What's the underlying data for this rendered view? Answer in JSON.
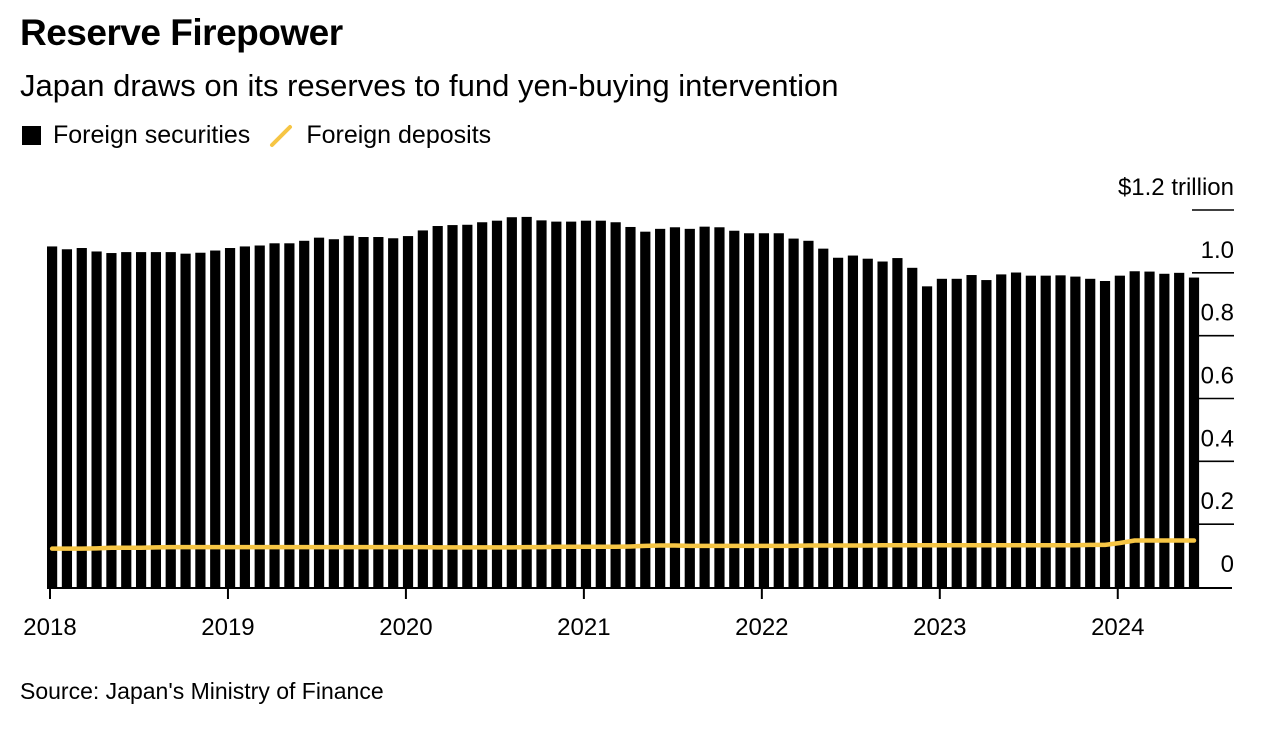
{
  "header": {
    "title": "Reserve Firepower",
    "subtitle": "Japan draws on its reserves to fund yen-buying intervention"
  },
  "legend": {
    "items": [
      {
        "label": "Foreign securities",
        "color": "#000000",
        "shape": "square"
      },
      {
        "label": "Foreign deposits",
        "color": "#f6c544",
        "shape": "line"
      }
    ]
  },
  "source": "Source: Japan's Ministry of Finance",
  "chart_data": {
    "type": "bar",
    "ylim": [
      0,
      1.2
    ],
    "y_unit_label": "$1.2 trillion",
    "y_ticks": [
      {
        "value": 1.2,
        "label": "$1.2 trillion"
      },
      {
        "value": 1.0,
        "label": "1.0"
      },
      {
        "value": 0.8,
        "label": "0.8"
      },
      {
        "value": 0.6,
        "label": "0.6"
      },
      {
        "value": 0.4,
        "label": "0.4"
      },
      {
        "value": 0.2,
        "label": "0.2"
      },
      {
        "value": 0,
        "label": "0"
      }
    ],
    "x_ticks": [
      "2018",
      "2019",
      "2020",
      "2021",
      "2022",
      "2023",
      "2024"
    ],
    "x_start": "2018-01",
    "series": [
      {
        "name": "Foreign securities",
        "type": "bar",
        "color": "#000000",
        "values": [
          1.084,
          1.075,
          1.079,
          1.068,
          1.063,
          1.066,
          1.066,
          1.066,
          1.066,
          1.061,
          1.064,
          1.071,
          1.079,
          1.084,
          1.087,
          1.094,
          1.094,
          1.102,
          1.112,
          1.107,
          1.118,
          1.114,
          1.114,
          1.11,
          1.117,
          1.135,
          1.149,
          1.152,
          1.153,
          1.161,
          1.166,
          1.177,
          1.178,
          1.167,
          1.163,
          1.163,
          1.166,
          1.166,
          1.161,
          1.146,
          1.131,
          1.14,
          1.145,
          1.14,
          1.147,
          1.145,
          1.134,
          1.126,
          1.126,
          1.126,
          1.109,
          1.102,
          1.077,
          1.048,
          1.055,
          1.045,
          1.036,
          1.047,
          1.016,
          0.957,
          0.981,
          0.981,
          0.993,
          0.977,
          0.995,
          1.001,
          0.991,
          0.991,
          0.992,
          0.988,
          0.981,
          0.974,
          0.991,
          1.005,
          1.004,
          0.997,
          1.0,
          0.985
        ]
      },
      {
        "name": "Foreign deposits",
        "type": "line",
        "color": "#f6c544",
        "values": [
          0.122,
          0.122,
          0.122,
          0.123,
          0.125,
          0.125,
          0.125,
          0.126,
          0.127,
          0.127,
          0.127,
          0.127,
          0.127,
          0.127,
          0.127,
          0.127,
          0.127,
          0.127,
          0.127,
          0.127,
          0.127,
          0.127,
          0.127,
          0.127,
          0.127,
          0.127,
          0.126,
          0.126,
          0.126,
          0.126,
          0.126,
          0.126,
          0.127,
          0.127,
          0.128,
          0.128,
          0.128,
          0.128,
          0.128,
          0.129,
          0.131,
          0.132,
          0.132,
          0.131,
          0.131,
          0.131,
          0.131,
          0.131,
          0.131,
          0.131,
          0.131,
          0.132,
          0.132,
          0.132,
          0.132,
          0.132,
          0.133,
          0.133,
          0.133,
          0.133,
          0.133,
          0.133,
          0.133,
          0.133,
          0.133,
          0.133,
          0.133,
          0.133,
          0.133,
          0.133,
          0.134,
          0.134,
          0.14,
          0.148,
          0.148,
          0.148,
          0.148,
          0.148
        ]
      }
    ]
  }
}
